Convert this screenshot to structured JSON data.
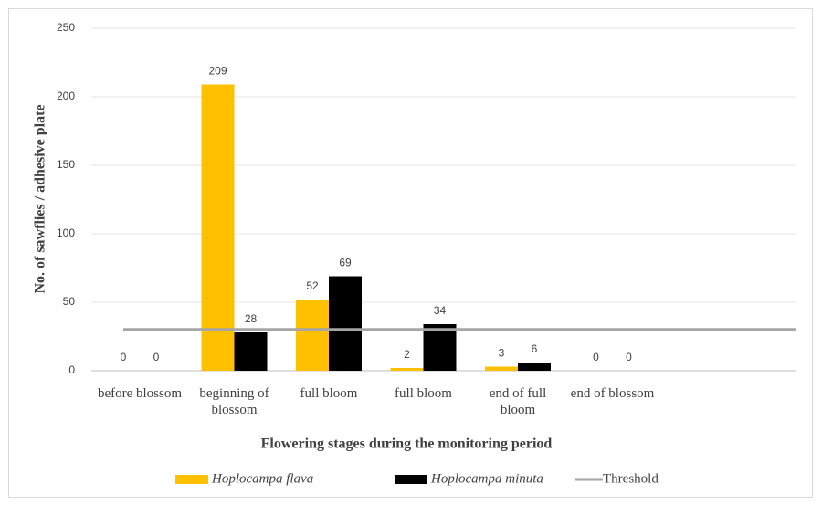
{
  "chart_data": {
    "type": "bar",
    "x_label": "Flowering  stages during the monitoring  period",
    "y_label": "No. of sawflies / adhesive plate",
    "categories": [
      "before blossom",
      "beginning of blossom",
      "full bloom",
      "full bloom",
      "end of full bloom",
      "end of blossom"
    ],
    "series": [
      {
        "name": "Hoplocampa flava",
        "color": "#ffc000",
        "values": [
          0,
          209,
          52,
          2,
          3,
          0
        ]
      },
      {
        "name": "Hoplocampa minuta",
        "color": "#000000",
        "values": [
          0,
          28,
          69,
          34,
          6,
          0
        ]
      }
    ],
    "threshold": {
      "name": "Threshold",
      "value": 30,
      "color": "#a6a6a6"
    },
    "ylim": [
      0,
      250
    ],
    "yticks": [
      0,
      50,
      100,
      150,
      200,
      250
    ],
    "grid": true,
    "legend": "bottom"
  }
}
